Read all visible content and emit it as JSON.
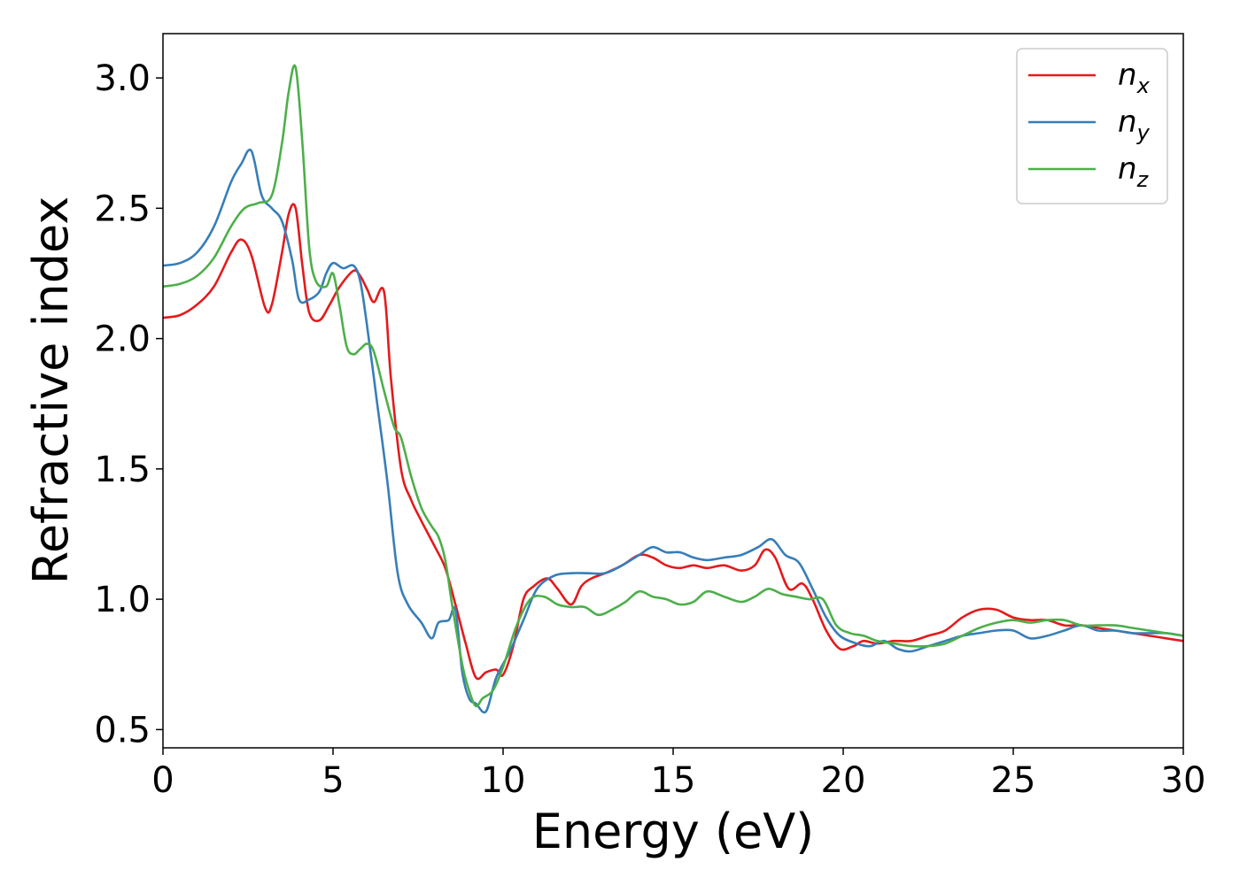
{
  "chart_data": {
    "type": "line",
    "xlabel": "Energy (eV)",
    "ylabel": "Refractive index",
    "xlim": [
      0,
      30
    ],
    "ylim": [
      0.43,
      3.17
    ],
    "xticks": [
      0,
      5,
      10,
      15,
      20,
      25,
      30
    ],
    "xtick_labels": [
      "0",
      "5",
      "10",
      "15",
      "20",
      "25",
      "30"
    ],
    "yticks": [
      0.5,
      1.0,
      1.5,
      2.0,
      2.5,
      3.0
    ],
    "ytick_labels": [
      "0.5",
      "1.0",
      "1.5",
      "2.0",
      "2.5",
      "3.0"
    ],
    "grid": false,
    "legend_position": "top-right",
    "series": [
      {
        "name": "n",
        "subscript": "x",
        "color": "#e41a1c",
        "x": [
          0,
          0.5,
          1.0,
          1.5,
          2.0,
          2.3,
          2.6,
          3.0,
          3.2,
          3.5,
          3.7,
          3.9,
          4.1,
          4.3,
          4.6,
          4.9,
          5.2,
          5.6,
          5.8,
          6.0,
          6.2,
          6.5,
          6.7,
          7.0,
          7.3,
          7.6,
          8.0,
          8.3,
          8.6,
          8.9,
          9.2,
          9.5,
          9.8,
          10.0,
          10.3,
          10.6,
          10.9,
          11.3,
          11.6,
          12.0,
          12.3,
          12.6,
          13.0,
          13.5,
          14.0,
          14.4,
          14.8,
          15.2,
          15.6,
          16.0,
          16.5,
          17.0,
          17.4,
          17.7,
          18.0,
          18.4,
          18.8,
          19.1,
          19.5,
          19.9,
          20.3,
          20.6,
          21.0,
          21.5,
          22.0,
          22.5,
          23.0,
          23.5,
          24.0,
          24.5,
          25.0,
          25.5,
          26.0,
          26.5,
          27.0,
          27.5,
          28.0,
          28.5,
          29.0,
          29.5,
          30.0
        ],
        "values": [
          2.08,
          2.09,
          2.13,
          2.2,
          2.33,
          2.38,
          2.32,
          2.12,
          2.13,
          2.33,
          2.48,
          2.5,
          2.28,
          2.1,
          2.07,
          2.13,
          2.2,
          2.26,
          2.24,
          2.19,
          2.14,
          2.18,
          1.85,
          1.5,
          1.38,
          1.3,
          1.2,
          1.12,
          0.98,
          0.83,
          0.7,
          0.72,
          0.73,
          0.71,
          0.82,
          1.0,
          1.05,
          1.08,
          1.04,
          0.98,
          1.05,
          1.08,
          1.1,
          1.13,
          1.17,
          1.16,
          1.13,
          1.12,
          1.13,
          1.12,
          1.13,
          1.11,
          1.13,
          1.19,
          1.16,
          1.04,
          1.06,
          1.0,
          0.88,
          0.81,
          0.82,
          0.84,
          0.83,
          0.84,
          0.84,
          0.86,
          0.88,
          0.93,
          0.96,
          0.96,
          0.93,
          0.92,
          0.92,
          0.9,
          0.9,
          0.89,
          0.88,
          0.87,
          0.86,
          0.85,
          0.84
        ]
      },
      {
        "name": "n",
        "subscript": "y",
        "color": "#377eb8",
        "x": [
          0,
          0.5,
          1.0,
          1.5,
          2.0,
          2.3,
          2.6,
          2.9,
          3.2,
          3.5,
          3.8,
          4.0,
          4.3,
          4.6,
          4.8,
          5.0,
          5.3,
          5.6,
          5.8,
          6.0,
          6.3,
          6.6,
          6.9,
          7.2,
          7.6,
          7.9,
          8.1,
          8.4,
          8.6,
          8.8,
          9.0,
          9.2,
          9.5,
          9.8,
          10.2,
          10.6,
          11.0,
          11.5,
          12.0,
          12.5,
          13.0,
          13.5,
          14.0,
          14.4,
          14.8,
          15.2,
          15.6,
          16.0,
          16.5,
          17.0,
          17.5,
          17.9,
          18.3,
          18.7,
          19.1,
          19.5,
          19.9,
          20.4,
          20.8,
          21.2,
          21.6,
          22.0,
          22.5,
          23.0,
          23.5,
          24.0,
          24.5,
          25.0,
          25.5,
          26.0,
          26.5,
          27.0,
          27.5,
          28.0,
          28.5,
          29.0,
          29.5,
          30.0
        ],
        "values": [
          2.28,
          2.29,
          2.33,
          2.43,
          2.6,
          2.67,
          2.72,
          2.55,
          2.5,
          2.45,
          2.3,
          2.15,
          2.15,
          2.18,
          2.25,
          2.29,
          2.27,
          2.28,
          2.22,
          2.05,
          1.75,
          1.45,
          1.1,
          0.98,
          0.91,
          0.85,
          0.91,
          0.92,
          0.96,
          0.72,
          0.62,
          0.6,
          0.57,
          0.7,
          0.8,
          0.92,
          1.04,
          1.09,
          1.1,
          1.1,
          1.1,
          1.13,
          1.17,
          1.2,
          1.18,
          1.18,
          1.16,
          1.15,
          1.16,
          1.17,
          1.2,
          1.23,
          1.17,
          1.14,
          1.04,
          0.93,
          0.86,
          0.83,
          0.82,
          0.84,
          0.81,
          0.8,
          0.82,
          0.84,
          0.86,
          0.87,
          0.88,
          0.88,
          0.85,
          0.86,
          0.88,
          0.9,
          0.88,
          0.88,
          0.87,
          0.87,
          0.87,
          0.86
        ]
      },
      {
        "name": "n",
        "subscript": "z",
        "color": "#4daf4a",
        "x": [
          0,
          0.5,
          1.0,
          1.5,
          2.0,
          2.4,
          2.8,
          3.2,
          3.5,
          3.7,
          3.9,
          4.1,
          4.3,
          4.5,
          4.8,
          5.0,
          5.2,
          5.4,
          5.6,
          5.8,
          6.0,
          6.2,
          6.5,
          6.8,
          7.0,
          7.3,
          7.6,
          7.9,
          8.1,
          8.3,
          8.5,
          8.8,
          9.0,
          9.2,
          9.4,
          9.7,
          10.0,
          10.4,
          10.8,
          11.2,
          11.6,
          12.0,
          12.4,
          12.8,
          13.2,
          13.6,
          14.0,
          14.4,
          14.8,
          15.2,
          15.6,
          16.0,
          16.5,
          17.0,
          17.4,
          17.8,
          18.2,
          18.6,
          19.0,
          19.4,
          19.8,
          20.2,
          20.6,
          21.0,
          21.5,
          22.0,
          22.5,
          23.0,
          23.5,
          24.0,
          24.5,
          25.0,
          25.5,
          26.0,
          26.5,
          27.0,
          27.5,
          28.0,
          28.5,
          29.0,
          29.5,
          30.0
        ],
        "values": [
          2.2,
          2.21,
          2.24,
          2.31,
          2.43,
          2.5,
          2.52,
          2.55,
          2.75,
          2.95,
          3.04,
          2.75,
          2.35,
          2.22,
          2.2,
          2.25,
          2.12,
          1.97,
          1.94,
          1.96,
          1.98,
          1.95,
          1.8,
          1.66,
          1.62,
          1.47,
          1.35,
          1.28,
          1.24,
          1.15,
          0.98,
          0.75,
          0.65,
          0.59,
          0.62,
          0.65,
          0.74,
          0.9,
          1.0,
          1.01,
          0.98,
          0.97,
          0.97,
          0.94,
          0.96,
          0.99,
          1.03,
          1.01,
          1.0,
          0.98,
          0.99,
          1.03,
          1.01,
          0.99,
          1.01,
          1.04,
          1.02,
          1.01,
          1.0,
          1.0,
          0.9,
          0.87,
          0.86,
          0.84,
          0.83,
          0.82,
          0.82,
          0.83,
          0.86,
          0.89,
          0.91,
          0.92,
          0.91,
          0.92,
          0.92,
          0.9,
          0.9,
          0.9,
          0.89,
          0.88,
          0.87,
          0.86
        ]
      }
    ]
  }
}
